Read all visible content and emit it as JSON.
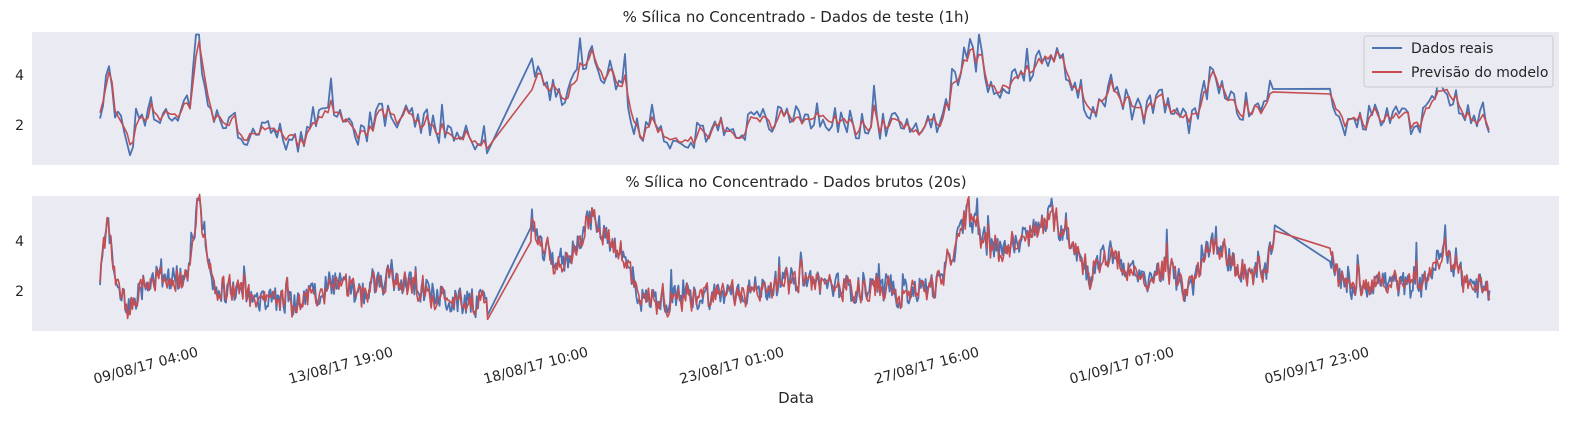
{
  "chart_data": [
    {
      "type": "line",
      "title": "% Sílica no Concentrado - Dados de teste (1h)",
      "xlabel": "",
      "ylabel": "",
      "y_ticks": [
        "2",
        "4"
      ],
      "ylim": [
        0.4,
        5.7
      ],
      "grid": false,
      "legend": {
        "placement": "top-right",
        "entries": [
          "Dados reais",
          "Previsão do modelo"
        ]
      },
      "series": [
        {
          "name": "Dados reais",
          "color": "#4c72b0"
        },
        {
          "name": "Previsão do modelo",
          "color": "#c44e52"
        }
      ]
    },
    {
      "type": "line",
      "title": "% Sílica no Concentrado - Dados brutos (20s)",
      "xlabel": "Data",
      "ylabel": "",
      "y_ticks": [
        "2",
        "4"
      ],
      "ylim": [
        0.4,
        5.7
      ],
      "x_ticks": [
        "09/08/17 04:00",
        "13/08/17 19:00",
        "18/08/17 10:00",
        "23/08/17 01:00",
        "27/08/17 16:00",
        "01/09/17 07:00",
        "05/09/17 23:00"
      ],
      "grid": false,
      "series": [
        {
          "name": "Dados reais",
          "color": "#4c72b0"
        },
        {
          "name": "Previsão do modelo",
          "color": "#c44e52"
        }
      ]
    }
  ]
}
